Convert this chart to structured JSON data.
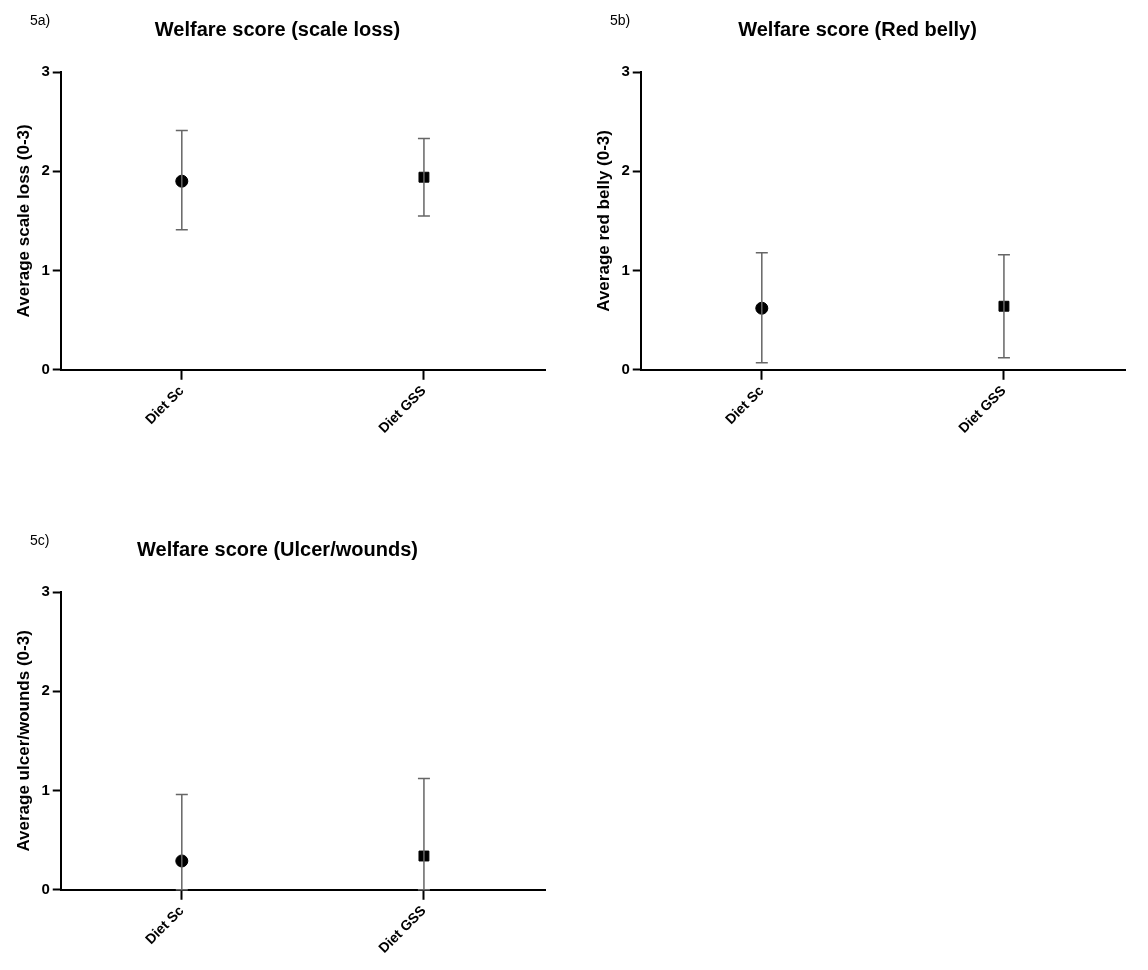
{
  "chart_data": [
    {
      "type": "scatter",
      "title": "Welfare score (scale loss)",
      "ylabel": "Average scale loss (0-3)",
      "annotations": [
        "5a)"
      ],
      "categories": [
        "Diet Sc",
        "Diet GSS"
      ],
      "ylim": [
        0,
        3
      ],
      "yticks": [
        0,
        1,
        2,
        3
      ],
      "grid": false,
      "legend": false,
      "series": [
        {
          "color": "#000000",
          "marker": "circle",
          "x": [
            "Diet Sc"
          ],
          "values": [
            1.9
          ],
          "errors": [
            [
              1.41,
              2.41
            ]
          ]
        },
        {
          "color": "#000000",
          "marker": "square",
          "x": [
            "Diet GSS"
          ],
          "values": [
            1.94
          ],
          "errors": [
            [
              1.55,
              2.33
            ]
          ]
        }
      ]
    },
    {
      "type": "scatter",
      "title": "Welfare score (Red belly)",
      "ylabel": "Average red belly (0-3)",
      "annotations": [
        "5b)"
      ],
      "categories": [
        "Diet Sc",
        "Diet GSS"
      ],
      "ylim": [
        0,
        3
      ],
      "yticks": [
        0,
        1,
        2,
        3
      ],
      "grid": false,
      "legend": false,
      "series": [
        {
          "color": "#000000",
          "marker": "circle",
          "x": [
            "Diet Sc"
          ],
          "values": [
            0.62
          ],
          "errors": [
            [
              0.07,
              1.18
            ]
          ]
        },
        {
          "color": "#000000",
          "marker": "square",
          "x": [
            "Diet GSS"
          ],
          "values": [
            0.64
          ],
          "errors": [
            [
              0.12,
              1.16
            ]
          ]
        }
      ]
    },
    {
      "type": "scatter",
      "title": "Welfare score (Ulcer/wounds)",
      "ylabel": "Average ulcer/wounds (0-3)",
      "annotations": [
        "5c)"
      ],
      "categories": [
        "Diet Sc",
        "Diet GSS"
      ],
      "ylim": [
        0,
        3
      ],
      "yticks": [
        0,
        1,
        2,
        3
      ],
      "grid": false,
      "legend": false,
      "series": [
        {
          "color": "#000000",
          "marker": "circle",
          "x": [
            "Diet Sc"
          ],
          "values": [
            0.29
          ],
          "errors": [
            [
              0,
              0.96
            ]
          ]
        },
        {
          "color": "#000000",
          "marker": "square",
          "x": [
            "Diet GSS"
          ],
          "values": [
            0.34
          ],
          "errors": [
            [
              0,
              1.12
            ]
          ]
        }
      ]
    }
  ]
}
